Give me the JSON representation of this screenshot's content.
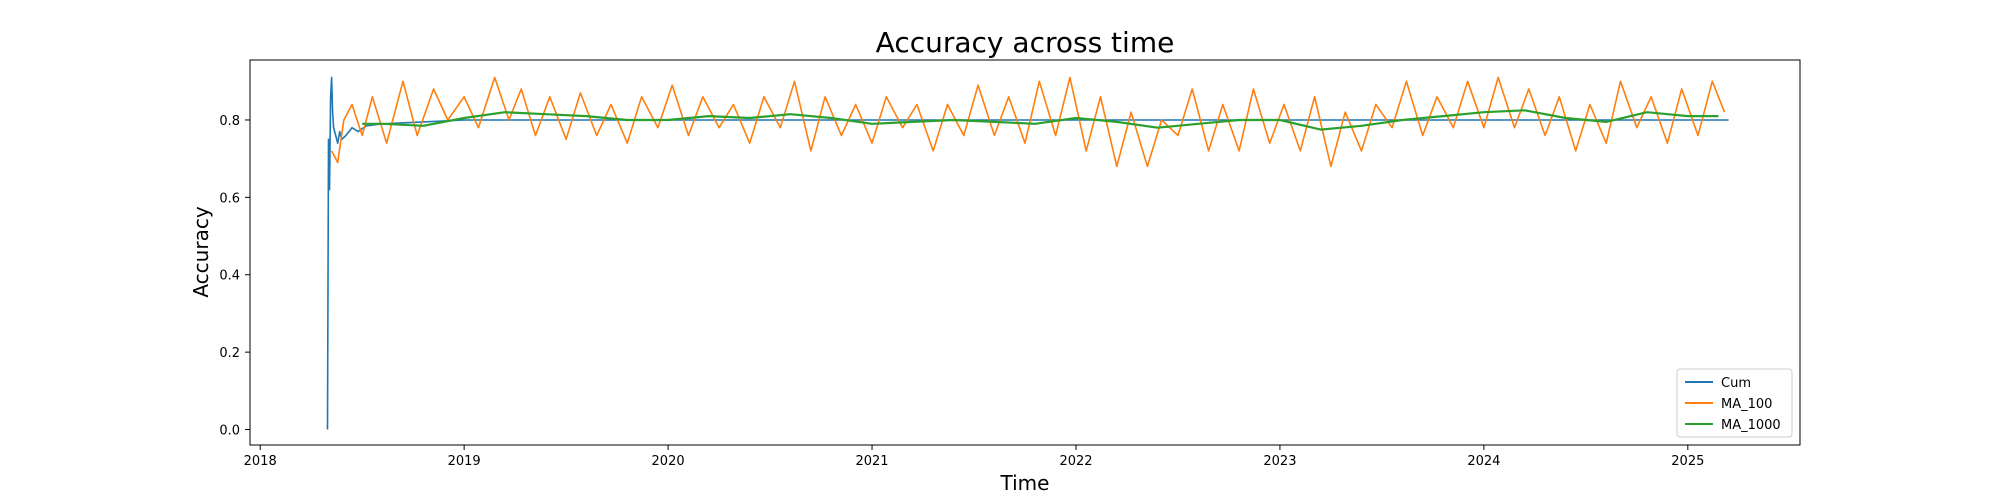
{
  "chart_data": {
    "type": "line",
    "title": "Accuracy across time",
    "xlabel": "Time",
    "ylabel": "Accuracy",
    "xlim": [
      2017.95,
      2025.55
    ],
    "ylim": [
      -0.04,
      0.955
    ],
    "x_ticks": [
      2018,
      2019,
      2020,
      2021,
      2022,
      2023,
      2024,
      2025
    ],
    "x_tick_labels": [
      "2018",
      "2019",
      "2020",
      "2021",
      "2022",
      "2023",
      "2024",
      "2025"
    ],
    "y_ticks": [
      0.0,
      0.2,
      0.4,
      0.6,
      0.8
    ],
    "y_tick_labels": [
      "0.0",
      "0.2",
      "0.4",
      "0.6",
      "0.8"
    ],
    "grid": false,
    "legend": "bottom-right",
    "series": [
      {
        "name": "Cum",
        "color": "#1f77b4",
        "x": [
          2018.33,
          2018.335,
          2018.34,
          2018.345,
          2018.35,
          2018.355,
          2018.36,
          2018.37,
          2018.38,
          2018.39,
          2018.4,
          2018.42,
          2018.45,
          2018.48,
          2018.52,
          2018.6,
          2018.8,
          2019.0,
          2019.5,
          2020.0,
          2020.5,
          2021.0,
          2021.5,
          2022.0,
          2022.5,
          2023.0,
          2023.5,
          2024.0,
          2024.5,
          2025.0,
          2025.2
        ],
        "y": [
          0.0,
          0.75,
          0.62,
          0.86,
          0.91,
          0.82,
          0.78,
          0.76,
          0.74,
          0.77,
          0.75,
          0.76,
          0.78,
          0.77,
          0.785,
          0.79,
          0.795,
          0.8,
          0.8,
          0.8,
          0.8,
          0.8,
          0.8,
          0.8,
          0.8,
          0.8,
          0.8,
          0.8,
          0.8,
          0.8,
          0.8
        ]
      },
      {
        "name": "MA_100",
        "color": "#ff7f0e",
        "x": [
          2018.35,
          2018.38,
          2018.41,
          2018.45,
          2018.5,
          2018.55,
          2018.62,
          2018.7,
          2018.77,
          2018.85,
          2018.92,
          2019.0,
          2019.07,
          2019.15,
          2019.22,
          2019.28,
          2019.35,
          2019.42,
          2019.5,
          2019.57,
          2019.65,
          2019.72,
          2019.8,
          2019.87,
          2019.95,
          2020.02,
          2020.1,
          2020.17,
          2020.25,
          2020.32,
          2020.4,
          2020.47,
          2020.55,
          2020.62,
          2020.7,
          2020.77,
          2020.85,
          2020.92,
          2021.0,
          2021.07,
          2021.15,
          2021.22,
          2021.3,
          2021.37,
          2021.45,
          2021.52,
          2021.6,
          2021.67,
          2021.75,
          2021.82,
          2021.9,
          2021.97,
          2022.05,
          2022.12,
          2022.2,
          2022.27,
          2022.35,
          2022.42,
          2022.5,
          2022.57,
          2022.65,
          2022.72,
          2022.8,
          2022.87,
          2022.95,
          2023.02,
          2023.1,
          2023.17,
          2023.25,
          2023.32,
          2023.4,
          2023.47,
          2023.55,
          2023.62,
          2023.7,
          2023.77,
          2023.85,
          2023.92,
          2024.0,
          2024.07,
          2024.15,
          2024.22,
          2024.3,
          2024.37,
          2024.45,
          2024.52,
          2024.6,
          2024.67,
          2024.75,
          2024.82,
          2024.9,
          2024.97,
          2025.05,
          2025.12,
          2025.18
        ],
        "y": [
          0.72,
          0.69,
          0.8,
          0.84,
          0.76,
          0.86,
          0.74,
          0.9,
          0.76,
          0.88,
          0.8,
          0.86,
          0.78,
          0.91,
          0.8,
          0.88,
          0.76,
          0.86,
          0.75,
          0.87,
          0.76,
          0.84,
          0.74,
          0.86,
          0.78,
          0.89,
          0.76,
          0.86,
          0.78,
          0.84,
          0.74,
          0.86,
          0.78,
          0.9,
          0.72,
          0.86,
          0.76,
          0.84,
          0.74,
          0.86,
          0.78,
          0.84,
          0.72,
          0.84,
          0.76,
          0.89,
          0.76,
          0.86,
          0.74,
          0.9,
          0.76,
          0.91,
          0.72,
          0.86,
          0.68,
          0.82,
          0.68,
          0.8,
          0.76,
          0.88,
          0.72,
          0.84,
          0.72,
          0.88,
          0.74,
          0.84,
          0.72,
          0.86,
          0.68,
          0.82,
          0.72,
          0.84,
          0.78,
          0.9,
          0.76,
          0.86,
          0.78,
          0.9,
          0.78,
          0.91,
          0.78,
          0.88,
          0.76,
          0.86,
          0.72,
          0.84,
          0.74,
          0.9,
          0.78,
          0.86,
          0.74,
          0.88,
          0.76,
          0.9,
          0.82
        ]
      },
      {
        "name": "MA_1000",
        "color": "#2ca02c",
        "x": [
          2018.5,
          2018.6,
          2018.8,
          2019.0,
          2019.2,
          2019.4,
          2019.6,
          2019.8,
          2020.0,
          2020.2,
          2020.4,
          2020.6,
          2020.8,
          2021.0,
          2021.2,
          2021.4,
          2021.6,
          2021.8,
          2022.0,
          2022.2,
          2022.4,
          2022.6,
          2022.8,
          2023.0,
          2023.2,
          2023.4,
          2023.6,
          2023.8,
          2024.0,
          2024.2,
          2024.4,
          2024.6,
          2024.8,
          2025.0,
          2025.15
        ],
        "y": [
          0.79,
          0.79,
          0.785,
          0.805,
          0.82,
          0.815,
          0.81,
          0.8,
          0.8,
          0.81,
          0.805,
          0.815,
          0.805,
          0.79,
          0.795,
          0.8,
          0.795,
          0.79,
          0.805,
          0.795,
          0.78,
          0.79,
          0.8,
          0.8,
          0.775,
          0.785,
          0.8,
          0.81,
          0.82,
          0.825,
          0.805,
          0.795,
          0.82,
          0.81,
          0.81
        ]
      }
    ]
  }
}
